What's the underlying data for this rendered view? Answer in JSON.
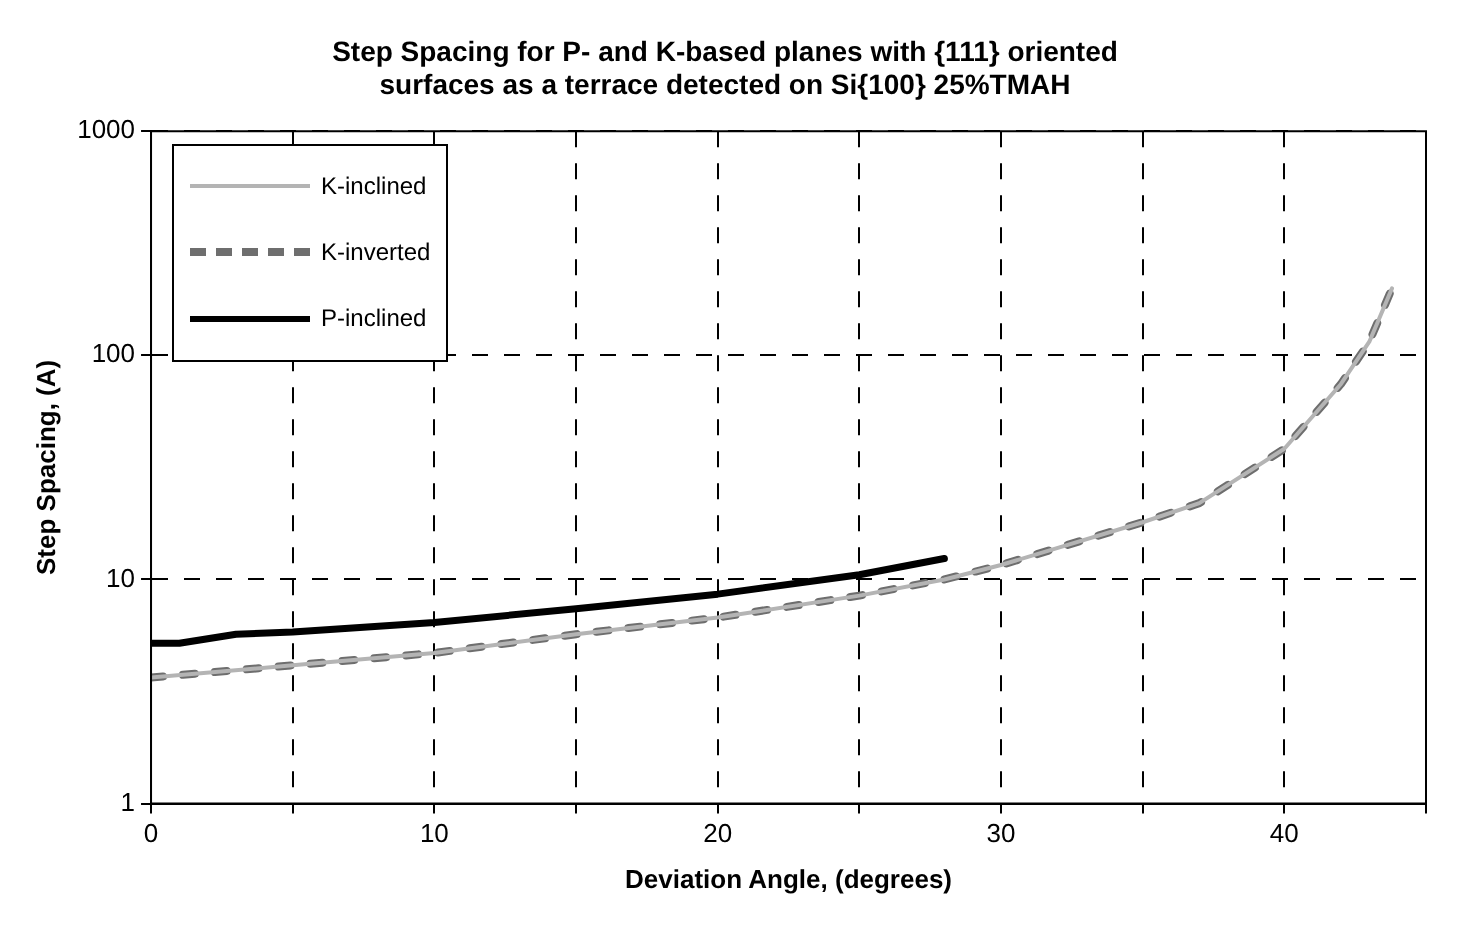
{
  "chart_data": {
    "type": "line",
    "title": [
      "Step Spacing for P- and K-based planes with {111} oriented",
      "surfaces as a terrace detected on Si{100} 25%TMAH"
    ],
    "xlabel": "Deviation Angle, (degrees)",
    "ylabel": "Step Spacing, (A)",
    "series": [
      {
        "name": "K-inclined",
        "color": "#b4b4b4",
        "line_style": "solid",
        "x": [
          0,
          5,
          10,
          15,
          20,
          25,
          28,
          30,
          35,
          37,
          40,
          42,
          43,
          43.8
        ],
        "values": [
          3.65,
          4.14,
          4.7,
          5.7,
          6.76,
          8.47,
          10,
          11.6,
          18,
          21.9,
          38.3,
          74.5,
          115,
          199
        ]
      },
      {
        "name": "K-inverted",
        "color": "#6e6e6e",
        "line_style": "dashed",
        "x": [
          0,
          5,
          10,
          15,
          20,
          25,
          28,
          30,
          35,
          37,
          40,
          42,
          43,
          43.8
        ],
        "values": [
          3.65,
          4.14,
          4.7,
          5.7,
          6.76,
          8.47,
          10,
          11.6,
          18,
          21.9,
          38.3,
          74.5,
          115,
          199
        ]
      },
      {
        "name": "P-inclined",
        "color": "#000000",
        "line_style": "solid",
        "x": [
          0,
          1,
          3,
          5,
          10,
          15,
          20,
          25,
          28
        ],
        "values": [
          5.19,
          5.19,
          5.7,
          5.83,
          6.43,
          7.4,
          8.6,
          10.5,
          12.4
        ]
      }
    ],
    "xlim": [
      0,
      45
    ],
    "xticks": [
      0,
      {
        "value": 5,
        "label": null
      },
      10,
      {
        "value": 15,
        "label": null
      },
      20,
      {
        "value": 25,
        "label": null
      },
      30,
      {
        "value": 35,
        "label": null
      },
      40,
      {
        "value": 45,
        "label": null
      }
    ],
    "ylim": [
      1,
      1000
    ],
    "yticks": [
      1,
      10,
      100,
      1000
    ],
    "log": "y",
    "grid": true,
    "legend": "top left",
    "marker": "none"
  }
}
